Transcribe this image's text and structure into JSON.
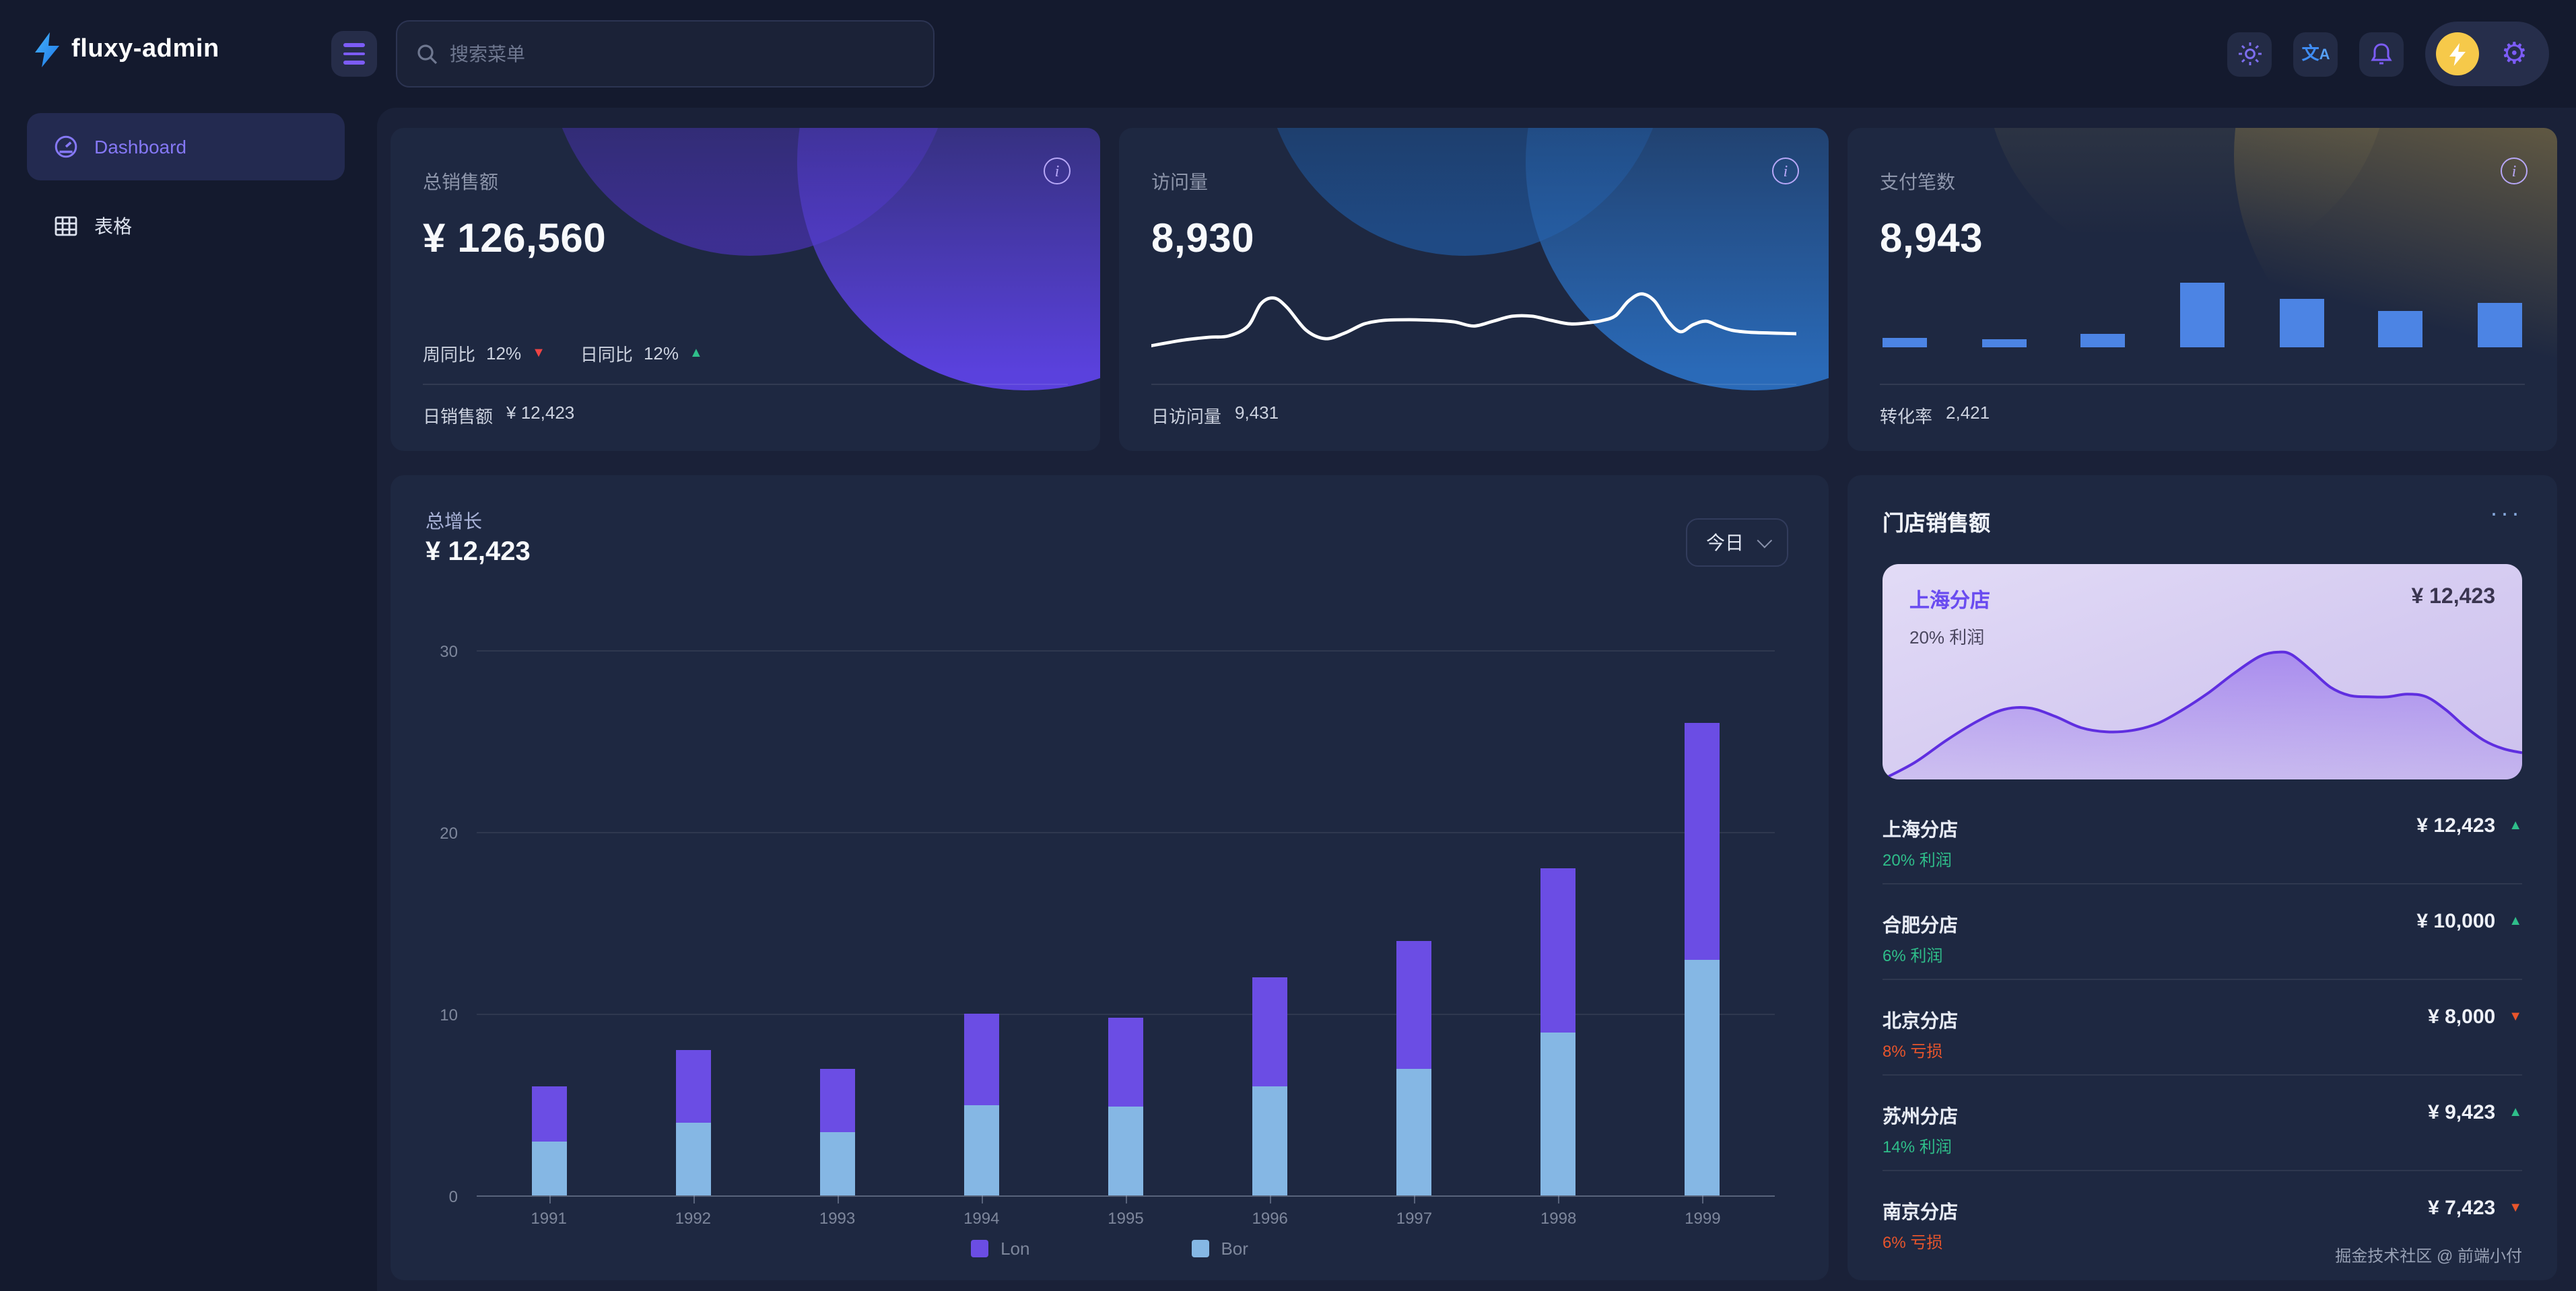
{
  "brand": {
    "name": "fluxy-admin"
  },
  "header": {
    "search_placeholder": "搜索菜单"
  },
  "sidebar": {
    "items": [
      {
        "label": "Dashboard"
      },
      {
        "label": "表格"
      }
    ]
  },
  "stats": [
    {
      "title": "总销售额",
      "value": "¥ 126,560",
      "trends": [
        {
          "label": "周同比",
          "value": "12%",
          "trend": "down"
        },
        {
          "label": "日同比",
          "value": "12%",
          "trend": "up"
        }
      ],
      "footer_label": "日销售额",
      "footer_value": "¥ 12,423"
    },
    {
      "title": "访问量",
      "value": "8,930",
      "footer_label": "日访问量",
      "footer_value": "9,431",
      "sparkline": [
        [
          0,
          88
        ],
        [
          5,
          80
        ],
        [
          9,
          76
        ],
        [
          12,
          74
        ],
        [
          15,
          60
        ],
        [
          17,
          28
        ],
        [
          19,
          20
        ],
        [
          21,
          33
        ],
        [
          24,
          66
        ],
        [
          27,
          78
        ],
        [
          30,
          70
        ],
        [
          33,
          57
        ],
        [
          36,
          52
        ],
        [
          40,
          51
        ],
        [
          44,
          52
        ],
        [
          47,
          54
        ],
        [
          50,
          60
        ],
        [
          53,
          53
        ],
        [
          56,
          46
        ],
        [
          59,
          46
        ],
        [
          62,
          52
        ],
        [
          65,
          57
        ],
        [
          68,
          55
        ],
        [
          70,
          52
        ],
        [
          72,
          45
        ],
        [
          74,
          24
        ],
        [
          76,
          14
        ],
        [
          78,
          24
        ],
        [
          80,
          52
        ],
        [
          82,
          68
        ],
        [
          84,
          58
        ],
        [
          86,
          53
        ],
        [
          88,
          60
        ],
        [
          90,
          66
        ],
        [
          93,
          69
        ],
        [
          100,
          71
        ]
      ]
    },
    {
      "title": "支付笔数",
      "value": "8,943",
      "footer_label": "转化率",
      "footer_value": "2,421",
      "bars": [
        15,
        13,
        21,
        100,
        75,
        56,
        69
      ]
    }
  ],
  "growth_chart": {
    "type": "bar",
    "title": "总增长",
    "value": "¥ 12,423",
    "range_label": "今日",
    "categories": [
      "1991",
      "1992",
      "1993",
      "1994",
      "1995",
      "1996",
      "1997",
      "1998",
      "1999"
    ],
    "series": [
      {
        "name": "Lon",
        "color": "#6b4de4",
        "values": [
          3,
          4,
          3.5,
          5,
          4.9,
          6,
          7,
          9,
          13
        ]
      },
      {
        "name": "Bor",
        "color": "#85b7e4",
        "values": [
          3,
          4,
          3.5,
          5,
          4.9,
          6,
          7,
          9,
          13
        ]
      }
    ],
    "yticks": [
      0,
      10,
      20,
      30
    ],
    "ymax": 30
  },
  "stores_panel": {
    "title": "门店销售额",
    "more_icon": "···",
    "featured": {
      "name": "上海分店",
      "value": "¥ 12,423",
      "profit": "20% 利润",
      "area": [
        [
          0,
          100
        ],
        [
          5,
          88
        ],
        [
          10,
          72
        ],
        [
          15,
          58
        ],
        [
          19,
          50
        ],
        [
          23,
          49
        ],
        [
          27,
          55
        ],
        [
          31,
          63
        ],
        [
          35,
          66
        ],
        [
          39,
          65
        ],
        [
          43,
          60
        ],
        [
          47,
          50
        ],
        [
          51,
          38
        ],
        [
          55,
          24
        ],
        [
          59,
          12
        ],
        [
          62,
          9
        ],
        [
          64,
          11
        ],
        [
          67,
          22
        ],
        [
          70,
          34
        ],
        [
          73,
          40
        ],
        [
          76,
          41
        ],
        [
          79,
          41
        ],
        [
          82,
          39
        ],
        [
          85,
          41
        ],
        [
          88,
          50
        ],
        [
          91,
          62
        ],
        [
          94,
          72
        ],
        [
          97,
          78
        ],
        [
          100,
          81
        ]
      ]
    },
    "rows": [
      {
        "name": "上海分店",
        "sub": "20% 利润",
        "type": "profit",
        "value": "¥ 12,423",
        "trend": "up"
      },
      {
        "name": "合肥分店",
        "sub": "6% 利润",
        "type": "profit",
        "value": "¥ 10,000",
        "trend": "up"
      },
      {
        "name": "北京分店",
        "sub": "8% 亏损",
        "type": "loss",
        "value": "¥ 8,000",
        "trend": "down"
      },
      {
        "name": "苏州分店",
        "sub": "14% 利润",
        "type": "profit",
        "value": "¥ 9,423",
        "trend": "up"
      },
      {
        "name": "南京分店",
        "sub": "6% 亏损",
        "type": "loss",
        "value": "¥ 7,423",
        "trend": "down"
      }
    ],
    "footer": "掘金技术社区 @ 前端小付"
  },
  "colors": {
    "accent_purple": "#7c5cf6",
    "bar_purple": "#6b4de4",
    "bar_blue": "#85b7e4",
    "mini_bar_blue": "#4c84e4",
    "profit_green": "#2fbe8a",
    "loss_orange": "#e8552c",
    "down_red": "#ef4444",
    "avatar_yellow": "#f6c94a",
    "translate_blue": "#3f8cf3"
  }
}
